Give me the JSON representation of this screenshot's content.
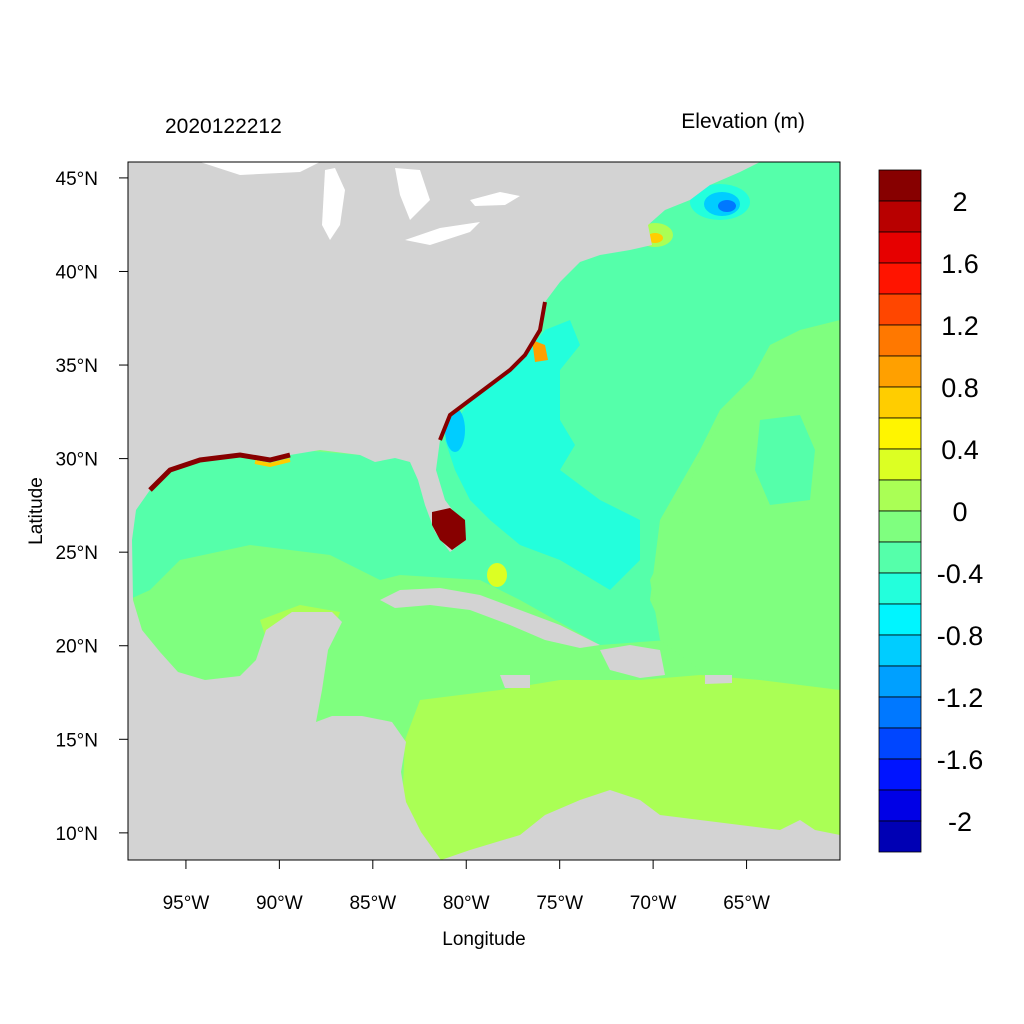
{
  "title_left": "2020122212",
  "title_right": "Elevation (m)",
  "xlabel": "Longitude",
  "ylabel": "Latitude",
  "map": {
    "lon_range": [
      -98.1,
      -60.0
    ],
    "lat_range": [
      8.55,
      45.85
    ],
    "land_color": "#d3d3d3",
    "lake_color": "#ffffff"
  },
  "xticks": [
    {
      "lon": -95,
      "label": "95°W"
    },
    {
      "lon": -90,
      "label": "90°W"
    },
    {
      "lon": -85,
      "label": "85°W"
    },
    {
      "lon": -80,
      "label": "80°W"
    },
    {
      "lon": -75,
      "label": "75°W"
    },
    {
      "lon": -70,
      "label": "70°W"
    },
    {
      "lon": -65,
      "label": "65°W"
    }
  ],
  "yticks": [
    {
      "lat": 10,
      "label": "10°N"
    },
    {
      "lat": 15,
      "label": "15°N"
    },
    {
      "lat": 20,
      "label": "20°N"
    },
    {
      "lat": 25,
      "label": "25°N"
    },
    {
      "lat": 30,
      "label": "30°N"
    },
    {
      "lat": 35,
      "label": "35°N"
    },
    {
      "lat": 40,
      "label": "40°N"
    },
    {
      "lat": 45,
      "label": "45°N"
    }
  ],
  "colorbar": {
    "colors_top_to_bottom": [
      "#870000",
      "#b80000",
      "#e60000",
      "#ff1400",
      "#ff4600",
      "#ff7800",
      "#ffa000",
      "#ffcd00",
      "#fff500",
      "#dcff23",
      "#aaff55",
      "#7fff7f",
      "#55ffaa",
      "#23ffdc",
      "#00f5ff",
      "#00cdff",
      "#00a0ff",
      "#0078ff",
      "#0046ff",
      "#0014ff",
      "#0000e6",
      "#0000b4"
    ],
    "labels": [
      "2",
      "1.6",
      "1.2",
      "0.8",
      "0.4",
      "0",
      "-0.4",
      "-0.8",
      "-1.2",
      "-1.6",
      "-2"
    ]
  }
}
